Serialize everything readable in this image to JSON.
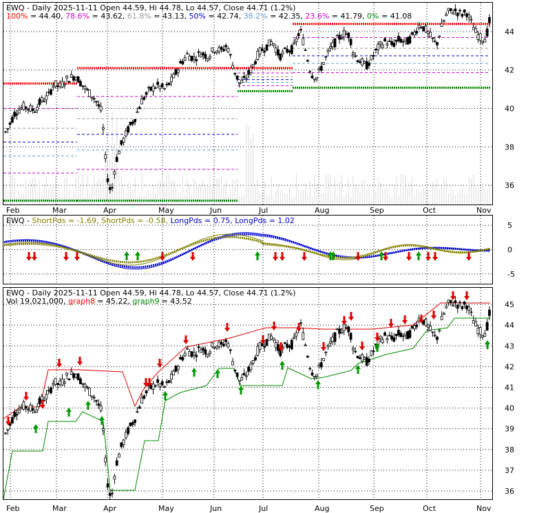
{
  "chart_data": [
    {
      "type": "candlestick",
      "panel": "price-fibonacci",
      "title": "EWQ - Daily 2025-11-11 Open 44.59, Hi 44.78, Lo 44.57, Close 44.71 (1.2%)",
      "fib_levels": [
        {
          "label": "100%",
          "value": 44.4,
          "value_text": "44.40",
          "color": "#ff0000"
        },
        {
          "label": "78.6%",
          "value": 43.62,
          "value_text": "43.62",
          "color": "#cc00cc"
        },
        {
          "label": "61.8%",
          "value": 43.13,
          "value_text": "43.13",
          "color": "#999999"
        },
        {
          "label": "50%",
          "value": 42.74,
          "value_text": "42.74",
          "color": "#0000cc"
        },
        {
          "label": "38.2%",
          "value": 42.35,
          "value_text": "42.35",
          "color": "#6699cc"
        },
        {
          "label": "23.6%",
          "value": 41.79,
          "value_text": "41.79",
          "color": "#cc00cc"
        },
        {
          "label": "0%",
          "value": 41.08,
          "value_text": "41.08",
          "color": "#008800"
        }
      ],
      "prior_fib": {
        "feb_mar": {
          "high": 41.3,
          "low": 35.2
        },
        "mar_jun": {
          "high": 42.1,
          "low": 35.2
        },
        "jun_jul": {
          "high": 42.1,
          "low": 40.9
        }
      },
      "yticks": [
        "36",
        "38",
        "40",
        "42",
        "44"
      ],
      "ylim": [
        35.0,
        45.5
      ],
      "months": [
        "Feb",
        "Mar",
        "Apr",
        "May",
        "Jun",
        "Jul",
        "Aug",
        "Sep",
        "Oct",
        "Nov"
      ],
      "grid": true
    },
    {
      "type": "line",
      "panel": "oscillator",
      "labels": [
        {
          "name": "EWQ",
          "text": "EWQ",
          "color": "#000000"
        },
        {
          "name": "ShortPds",
          "text": "ShortPds = -1.69,",
          "color": "#808000"
        },
        {
          "name": "ShortPds",
          "text": "ShortPds = -0.58,",
          "color": "#808000"
        },
        {
          "name": "LongPds",
          "text": "LongPds = 0.75,",
          "color": "#0000cc"
        },
        {
          "name": "LongPds",
          "text": "LongPds = 1.02",
          "color": "#0000cc"
        }
      ],
      "yticks": [
        "5",
        "0",
        "-5"
      ],
      "ylim": [
        -7,
        7
      ],
      "grid": true
    },
    {
      "type": "candlestick",
      "panel": "price-stops",
      "title": "EWQ - Daily 2025-11-11 Open 44.59, Hi 44.78, Lo 44.57, Close 44.71 (1.2%)",
      "volume_text": "Vol 19,021,000",
      "graph8": {
        "label": "graph8",
        "value_text": "= 45.22",
        "color": "#ff0000"
      },
      "graph9": {
        "label": "graph9",
        "value_text": "= 43.52",
        "color": "#008800"
      },
      "yticks": [
        "36",
        "37",
        "38",
        "39",
        "40",
        "41",
        "42",
        "43",
        "44",
        "45"
      ],
      "ylim": [
        35.6,
        45.8
      ],
      "months": [
        "Feb",
        "Mar",
        "Apr",
        "May",
        "Jun",
        "Jul",
        "Aug",
        "Sep",
        "Oct",
        "Nov"
      ],
      "grid": true
    }
  ],
  "colors": {
    "up_candle": "#ffffff",
    "down_candle": "#000000",
    "buy_arrow": "#009900",
    "sell_arrow": "#dd0000",
    "volume": "#dddddd",
    "grid": "#000000"
  }
}
